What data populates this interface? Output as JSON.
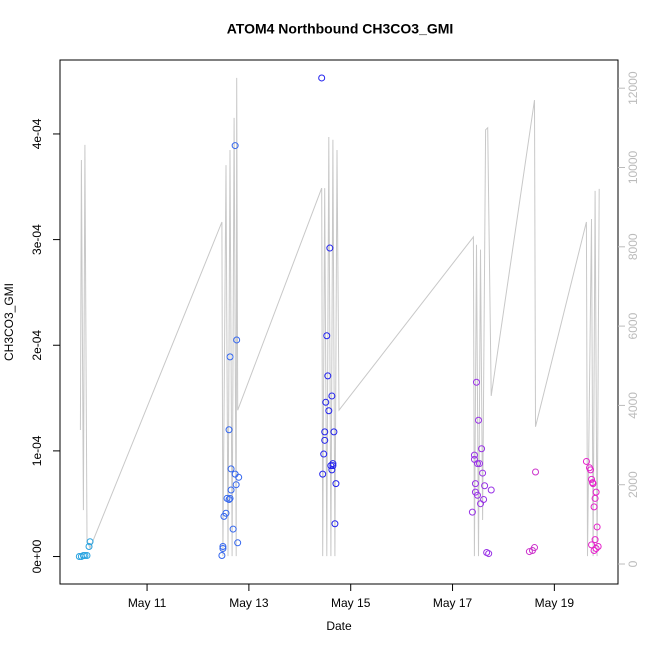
{
  "chart_data": {
    "type": "scatter",
    "title": "ATOM4 Northbound CH3CO3_GMI",
    "xlabel": "Date",
    "ylabel": "CH3CO3_GMI",
    "xlim": [
      9.29,
      20.25
    ],
    "xticks": [
      {
        "value": 11,
        "label": "May 11"
      },
      {
        "value": 13,
        "label": "May 13"
      },
      {
        "value": 15,
        "label": "May 15"
      },
      {
        "value": 17,
        "label": "May 17"
      },
      {
        "value": 19,
        "label": "May 19"
      }
    ],
    "ylim": [
      -2.6e-05,
      0.00047
    ],
    "yticks": [
      {
        "value": 0,
        "label": "0e+00"
      },
      {
        "value": 0.0001,
        "label": "1e-04"
      },
      {
        "value": 0.0002,
        "label": "2e-04"
      },
      {
        "value": 0.0003,
        "label": "3e-04"
      },
      {
        "value": 0.0004,
        "label": "4e-04"
      }
    ],
    "y2lim": [
      -504,
      12711
    ],
    "y2ticks": [
      0,
      2000,
      4000,
      6000,
      8000,
      10000,
      12000
    ],
    "series": [
      {
        "color": "#29a3e0",
        "x": [
          9.67,
          9.71,
          9.75,
          9.78,
          9.82,
          9.86,
          9.88
        ],
        "values": [
          0,
          0,
          1e-06,
          1e-06,
          1e-06,
          9.5e-06,
          1.4e-05
        ]
      },
      {
        "color": "#3366ee",
        "x": [
          12.47,
          12.49,
          12.49,
          12.51,
          12.55,
          12.57,
          12.61,
          12.63,
          12.61,
          12.65,
          12.65,
          12.69,
          12.73,
          12.75,
          12.73,
          12.76,
          12.78,
          12.8,
          12.63
        ],
        "values": [
          1e-06,
          7.6e-06,
          9.5e-06,
          3.8e-05,
          4.1e-05,
          5.5e-05,
          5.4e-05,
          5.5e-05,
          0.00012,
          8.3e-05,
          6.3e-05,
          2.6e-05,
          7.8e-05,
          6.8e-05,
          0.000389,
          0.000205,
          1.3e-05,
          7.5e-05,
          0.000189
        ]
      },
      {
        "color": "#2222ee",
        "x": [
          14.43,
          14.45,
          14.47,
          14.49,
          14.49,
          14.51,
          14.53,
          14.55,
          14.57,
          14.59,
          14.61,
          14.63,
          14.63,
          14.65,
          14.67,
          14.69,
          14.71,
          14.65
        ],
        "values": [
          0.000453,
          7.8e-05,
          9.7e-05,
          0.00011,
          0.000118,
          0.000146,
          0.000209,
          0.000171,
          0.000138,
          0.000292,
          8.6e-05,
          8.2e-05,
          0.000152,
          8.6e-05,
          0.000118,
          3.1e-05,
          6.9e-05,
          8.8e-05
        ]
      },
      {
        "color": "#9933e6",
        "x": [
          17.39,
          17.43,
          17.43,
          17.45,
          17.45,
          17.47,
          17.49,
          17.49,
          17.51,
          17.53,
          17.55,
          17.57,
          17.59,
          17.61,
          17.63,
          17.67,
          17.71,
          17.76
        ],
        "values": [
          4.2e-05,
          9.6e-05,
          9.2e-05,
          6.9e-05,
          6.1e-05,
          0.000165,
          5.8e-05,
          8.8e-05,
          0.000129,
          8.8e-05,
          5e-05,
          0.000102,
          7.9e-05,
          5.4e-05,
          6.7e-05,
          3.8e-06,
          2.8e-06,
          6.3e-05
        ]
      },
      {
        "color": "#cc33cc",
        "x": [
          18.51,
          18.57,
          18.61,
          18.63
        ],
        "values": [
          4.7e-06,
          5.7e-06,
          8.5e-06,
          8e-05
        ]
      },
      {
        "color": "#e622cc",
        "x": [
          19.63,
          19.69,
          19.71,
          19.73,
          19.75,
          19.76,
          19.78,
          19.8,
          19.82,
          19.84,
          19.73,
          19.78,
          19.82,
          19.86,
          19.8
        ],
        "values": [
          9e-05,
          8.4e-05,
          8.2e-05,
          7.3e-05,
          7e-05,
          6.9e-05,
          4.7e-05,
          5.5e-05,
          6.1e-05,
          2.8e-05,
          1.1e-05,
          5.7e-06,
          7.6e-06,
          9.5e-06,
          1.6e-05
        ]
      }
    ],
    "line_series": {
      "color": "#c8c8c8",
      "axis": "y2",
      "x": [
        9.69,
        9.71,
        9.75,
        9.78,
        9.82,
        9.88,
        12.47,
        12.49,
        12.55,
        12.59,
        12.63,
        12.67,
        12.71,
        12.75,
        12.76,
        12.78,
        14.43,
        14.45,
        14.49,
        14.53,
        14.57,
        14.61,
        14.65,
        14.69,
        14.73,
        14.77,
        17.41,
        17.43,
        17.47,
        17.51,
        17.55,
        17.59,
        17.65,
        17.69,
        17.76,
        18.61,
        18.63,
        19.63,
        19.65,
        19.73,
        19.76,
        19.8,
        19.84,
        19.88
      ],
      "values": [
        3380,
        10190,
        1360,
        10570,
        605,
        400,
        8625,
        200,
        10060,
        200,
        10440,
        200,
        11250,
        200,
        12260,
        3880,
        9480,
        200,
        9480,
        200,
        10770,
        200,
        10700,
        200,
        10440,
        3880,
        8250,
        200,
        8050,
        200,
        7930,
        1110,
        10950,
        11000,
        4240,
        11700,
        3460,
        8625,
        200,
        8700,
        200,
        9410,
        200,
        9460
      ]
    }
  }
}
